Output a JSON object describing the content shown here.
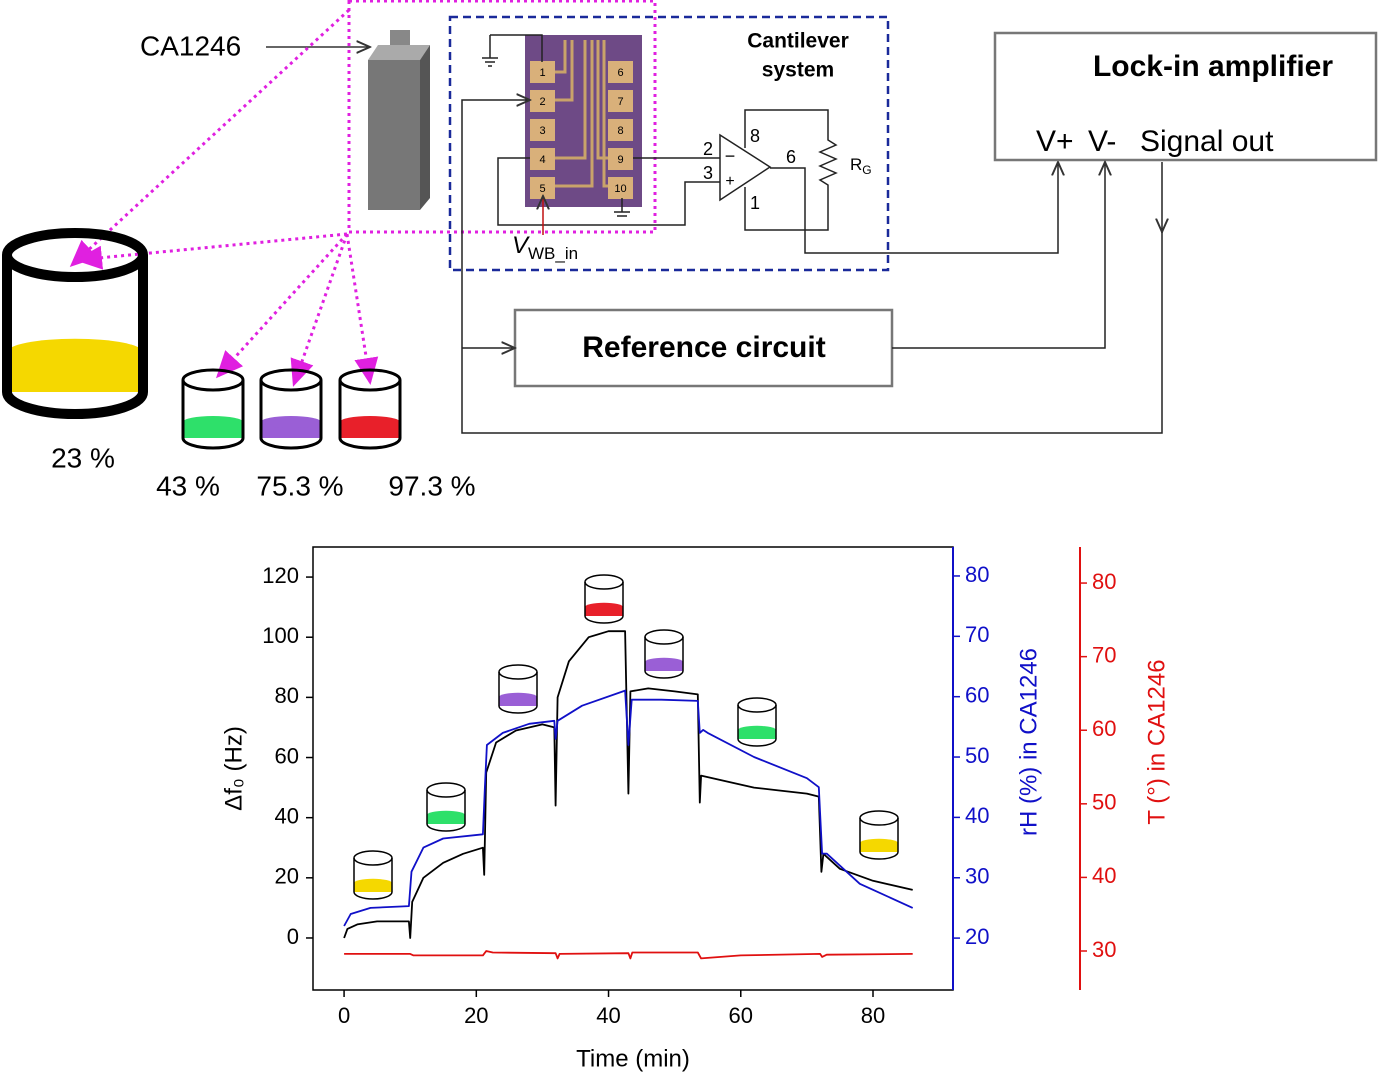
{
  "diagram": {
    "sample_label": "CA1246",
    "cantilever_title": [
      "Cantilever",
      "system"
    ],
    "lockin_title": "Lock-in amplifier",
    "lockin_inputs": [
      "V+",
      "V-",
      "Signal out"
    ],
    "reference": "Reference circuit",
    "vin": {
      "main": "V",
      "sub": "WB_in"
    },
    "rg": {
      "main": "R",
      "sub": "G"
    },
    "chip_pins": [
      "1",
      "2",
      "3",
      "4",
      "5",
      "10",
      "9",
      "8",
      "7",
      "6"
    ],
    "opamp": {
      "in_minus": "2",
      "in_plus": "3",
      "top": "8",
      "out": "6",
      "bottom": "1",
      "minus": "−",
      "plus": "+"
    },
    "salts": [
      "23 %",
      "43 %",
      "75.3 %",
      "97.3 %"
    ]
  },
  "chart_data": {
    "type": "line",
    "xlabel": "Time (min)",
    "ylabel": "Δf₀ (Hz)",
    "y2label": "rH (%) in CA1246",
    "y3label": "T (°) in CA1246",
    "xlim": [
      -4.7,
      92.1
    ],
    "xticks": [
      0,
      20,
      40,
      60,
      80
    ],
    "ylim": [
      -17.3,
      130
    ],
    "yticks": [
      0,
      20,
      40,
      60,
      80,
      100,
      120
    ],
    "y2lim": [
      11.4,
      84.8
    ],
    "y2ticks": [
      20,
      30,
      40,
      50,
      60,
      70,
      80
    ],
    "y3lim": [
      24.7,
      84.9
    ],
    "y3ticks": [
      30,
      40,
      50,
      60,
      70,
      80
    ],
    "y2color": "#1010c8",
    "y3color": "#e01010",
    "series": [
      {
        "color": "#000000",
        "axis": "y",
        "x": [
          0,
          0.5,
          2,
          5,
          9.8,
          10,
          10.3,
          12,
          15,
          18,
          21,
          21.2,
          21.5,
          23,
          26,
          30,
          31.8,
          32,
          32.3,
          34,
          37,
          40,
          42.5,
          43,
          43.3,
          46,
          50,
          53.5,
          53.8,
          54,
          58,
          62,
          66,
          70,
          71.8,
          72.2,
          72.5,
          75,
          80,
          86
        ],
        "values": [
          0,
          3,
          4.5,
          5.5,
          5.5,
          0,
          12,
          20,
          25,
          28,
          30,
          21,
          55,
          65,
          69,
          71,
          70,
          44,
          80,
          92,
          100,
          102,
          102,
          48,
          82,
          83,
          82,
          81,
          45,
          54,
          52,
          50,
          49,
          48,
          47,
          22,
          28,
          23,
          19,
          16
        ]
      },
      {
        "color": "#1010c8",
        "axis": "y2",
        "x": [
          0,
          1,
          4,
          9.8,
          10.2,
          12,
          15,
          21,
          21.3,
          21.6,
          24,
          28,
          31.8,
          32,
          32.3,
          36,
          42.5,
          43,
          43.5,
          48,
          53.5,
          53.8,
          54.3,
          55,
          62,
          70,
          71.8,
          72.3,
          73,
          78,
          86
        ],
        "values": [
          22,
          24,
          25,
          25.3,
          31,
          35,
          36.5,
          37.2,
          45,
          52,
          54,
          55.5,
          56,
          53,
          56,
          58.5,
          61,
          52,
          59.5,
          59.5,
          59.3,
          54,
          54.5,
          54,
          50,
          46.5,
          45,
          34,
          34,
          29,
          25
        ]
      },
      {
        "color": "#e01010",
        "axis": "y3",
        "x": [
          0,
          10,
          10.5,
          21,
          21.5,
          22.5,
          32,
          32.3,
          32.6,
          43,
          43.3,
          43.6,
          53.5,
          54,
          60,
          72,
          72.3,
          73,
          86
        ],
        "values": [
          29.6,
          29.6,
          29.4,
          29.4,
          30,
          29.8,
          29.7,
          29,
          29.6,
          29.7,
          29,
          29.8,
          29.8,
          29,
          29.4,
          29.6,
          29.2,
          29.5,
          29.6
        ]
      }
    ]
  }
}
